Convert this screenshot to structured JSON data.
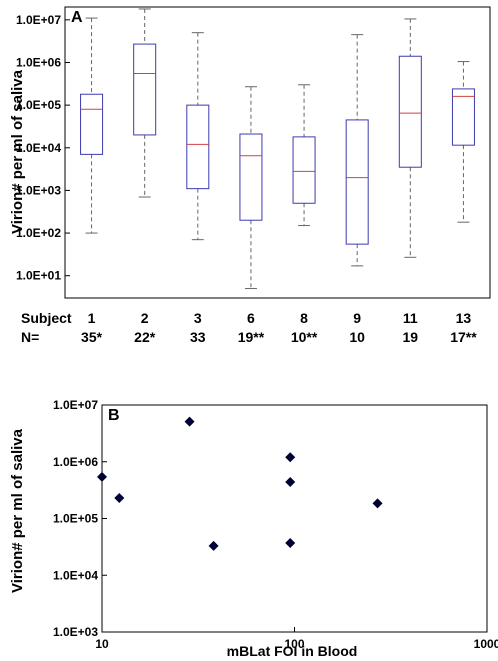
{
  "chart_data": [
    {
      "panel": "A",
      "type": "box",
      "ylabel": "Virion# per ml of saliva",
      "yscale": "log",
      "ylim": [
        3,
        20000000
      ],
      "ytick_values": [
        10,
        100,
        1000,
        10000,
        100000,
        1000000,
        10000000
      ],
      "ytick_labels": [
        "1.0E+01",
        "1.0E+02",
        "1.0E+03",
        "1.0E+04",
        "1.0E+05",
        "1.0E+06",
        "1.0E+07"
      ],
      "row_labels": [
        "Subject",
        "N="
      ],
      "categories": [
        "1",
        "2",
        "3",
        "6",
        "8",
        "9",
        "11",
        "13"
      ],
      "n_labels": [
        "35*",
        "22*",
        "33",
        "19**",
        "10**",
        "10",
        "19",
        "17**"
      ],
      "boxes": [
        {
          "whisker_low": 100,
          "q1": 7000,
          "median": 80000,
          "q3": 180000,
          "whisker_high": 11000000
        },
        {
          "whisker_low": 700,
          "q1": 20000,
          "median": 550000,
          "q3": 2700000,
          "whisker_high": 18000000
        },
        {
          "whisker_low": 70,
          "q1": 1100,
          "median": 12000,
          "q3": 100000,
          "whisker_high": 5000000
        },
        {
          "whisker_low": 5,
          "q1": 200,
          "median": 6500,
          "q3": 21000,
          "whisker_high": 270000
        },
        {
          "whisker_low": 150,
          "q1": 500,
          "median": 2800,
          "q3": 18000,
          "whisker_high": 300000
        },
        {
          "whisker_low": 17,
          "q1": 55,
          "median": 2000,
          "q3": 45000,
          "whisker_high": 4500000
        },
        {
          "whisker_low": 27,
          "q1": 3500,
          "median": 65000,
          "q3": 1400000,
          "whisker_high": 10500000
        },
        {
          "whisker_low": 180,
          "q1": 11500,
          "median": 160000,
          "q3": 240000,
          "whisker_high": 1050000
        }
      ],
      "colors": {
        "box": "#3b3bb0",
        "median": "#d04040",
        "whisker": "#666666"
      }
    },
    {
      "panel": "B",
      "type": "scatter",
      "ylabel": "Virion# per ml of saliva",
      "xlabel": "mBLat FOI in Blood",
      "xscale": "log",
      "yscale": "log",
      "xlim": [
        10,
        1000
      ],
      "ylim": [
        1000,
        10000000
      ],
      "xtick_values": [
        10,
        100,
        1000
      ],
      "xtick_labels": [
        "10",
        "100",
        "1000"
      ],
      "ytick_values": [
        1000,
        10000,
        100000,
        1000000,
        10000000
      ],
      "ytick_labels": [
        "1.0E+03",
        "1.0E+04",
        "1.0E+05",
        "1.0E+06",
        "1.0E+07"
      ],
      "points": [
        {
          "x": 10,
          "y": 540000
        },
        {
          "x": 12.3,
          "y": 230000
        },
        {
          "x": 28.5,
          "y": 5100000
        },
        {
          "x": 38,
          "y": 33000
        },
        {
          "x": 95,
          "y": 1200000
        },
        {
          "x": 95,
          "y": 440000
        },
        {
          "x": 95,
          "y": 37000
        },
        {
          "x": 270,
          "y": 185000
        }
      ],
      "marker_color": "#000033"
    }
  ]
}
